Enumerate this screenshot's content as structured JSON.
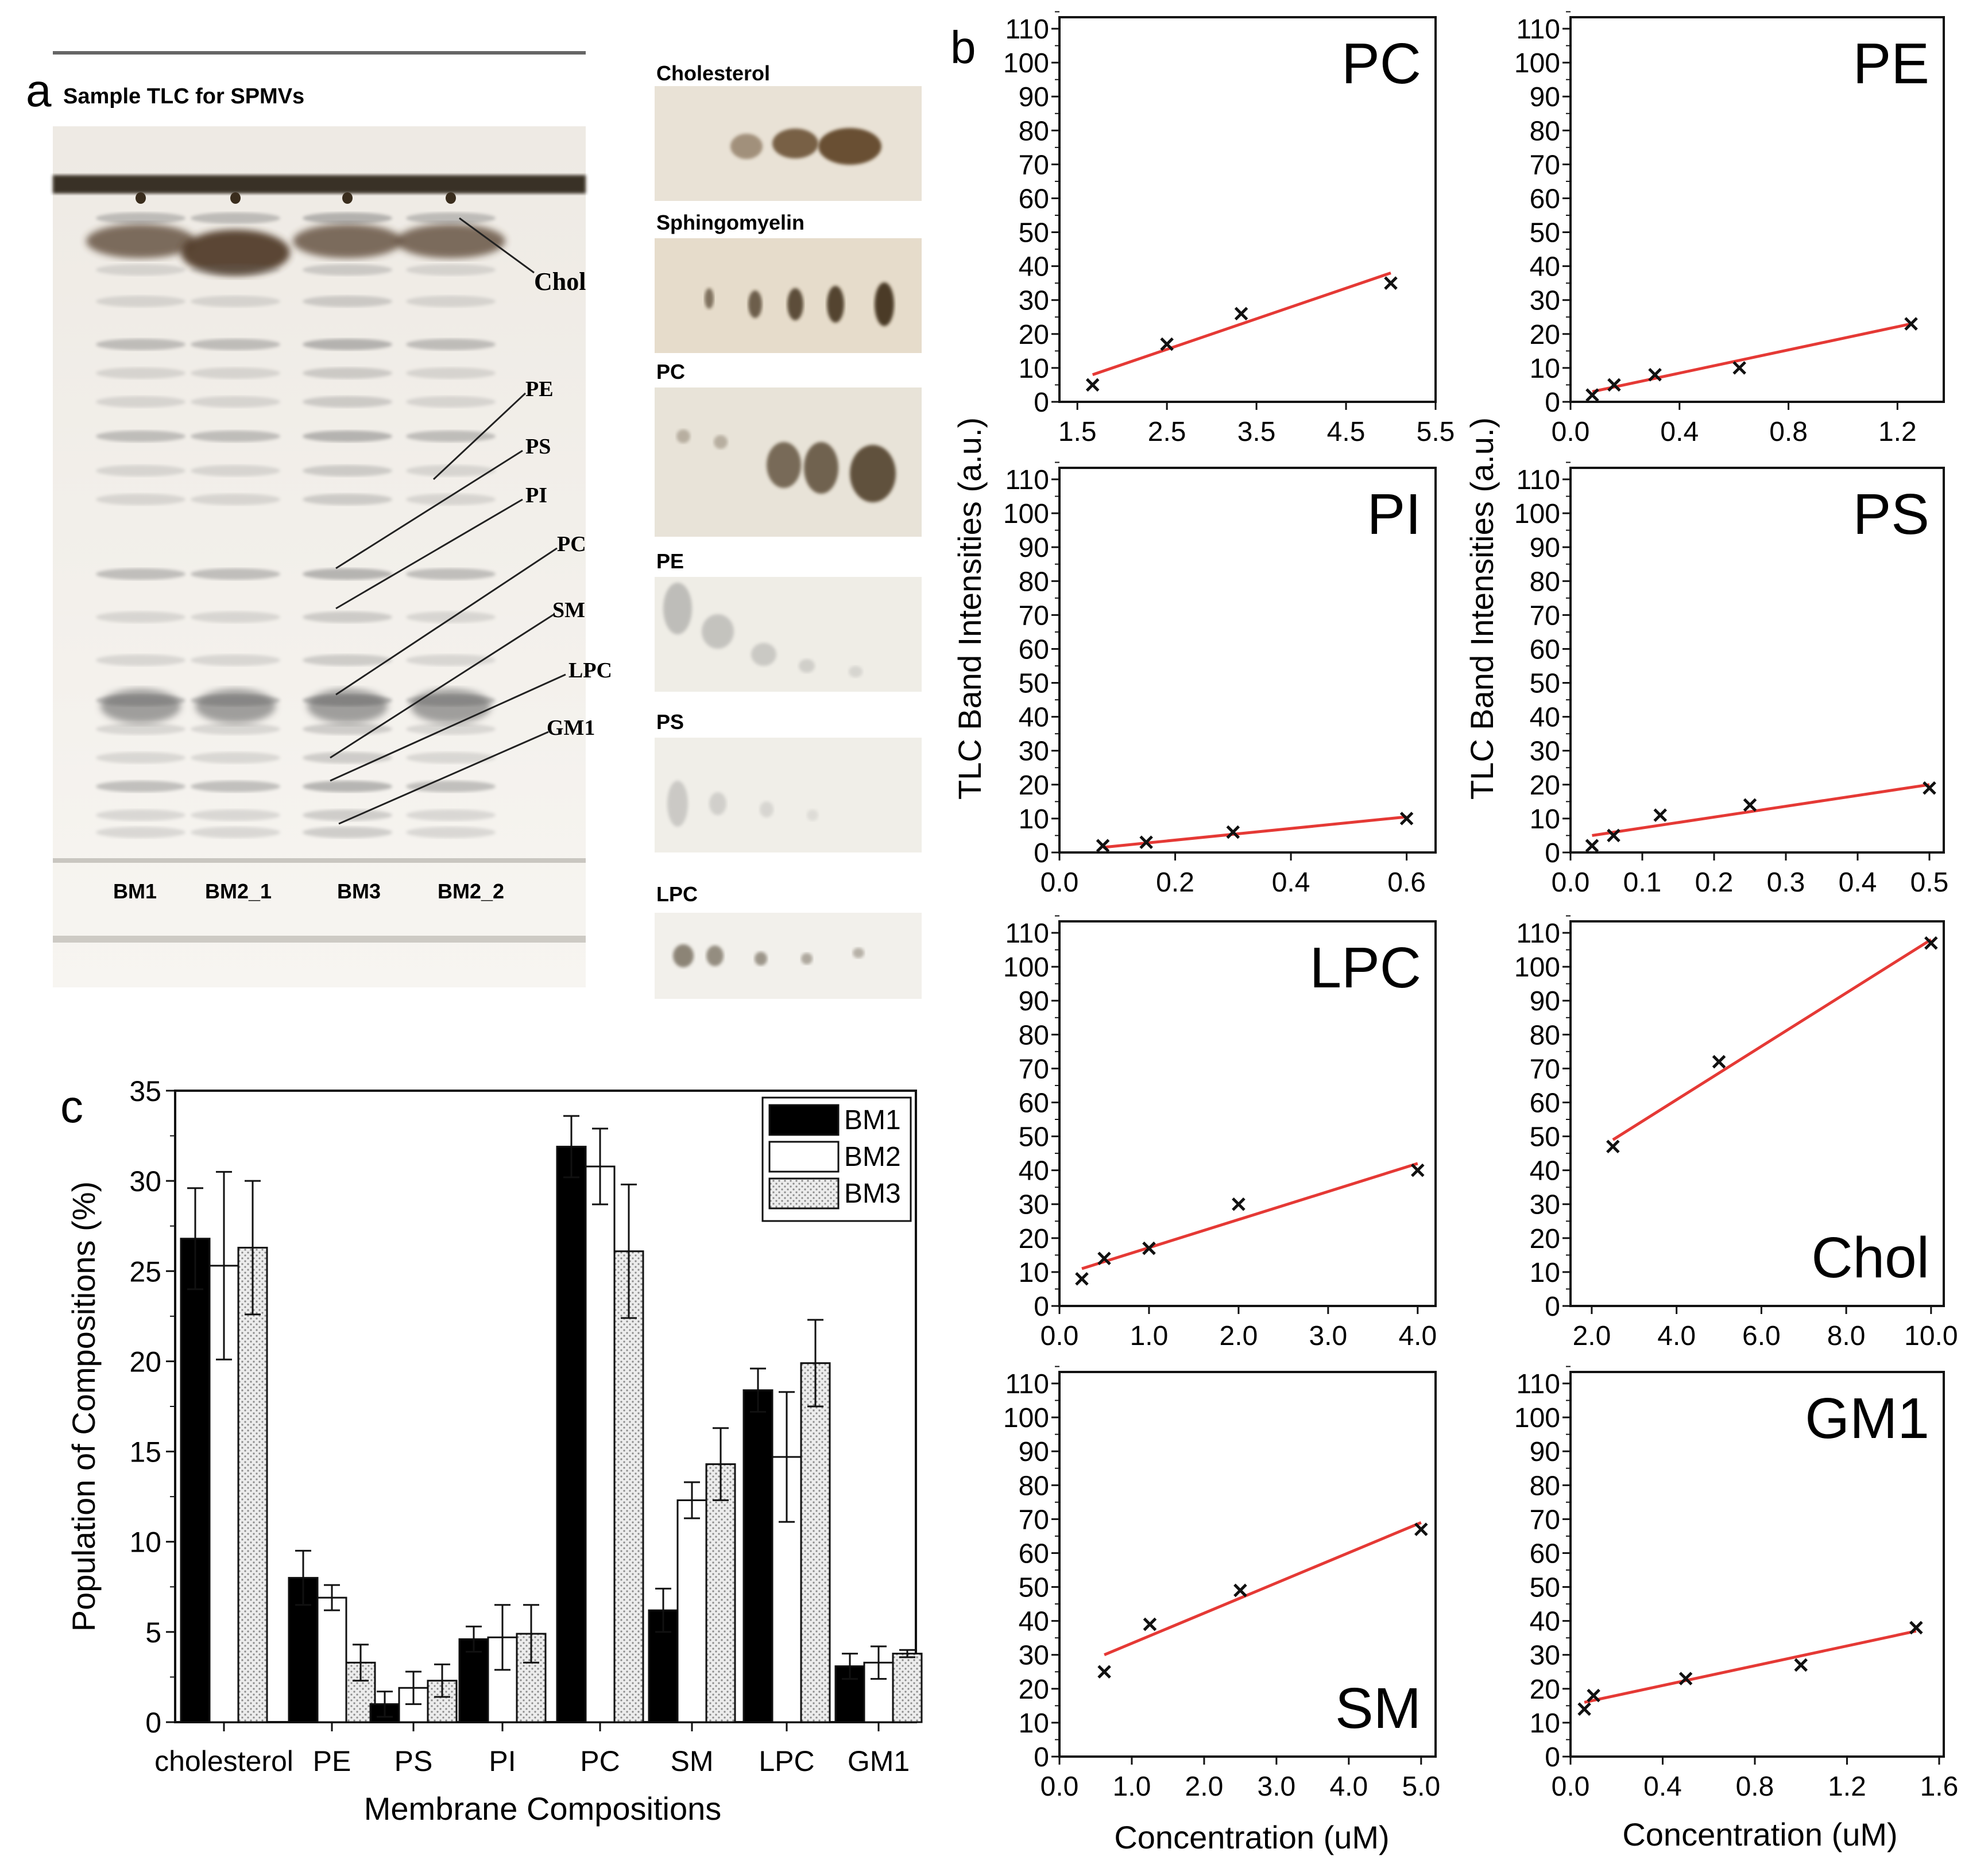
{
  "panel_a": {
    "letter": "a",
    "title": "Sample TLC for SPMVs",
    "band_labels": [
      "Chol",
      "PE",
      "PS",
      "PI",
      "PC",
      "SM",
      "LPC",
      "GM1"
    ],
    "lane_labels": [
      "BM1",
      "BM2_1",
      "BM3",
      "BM2_2"
    ],
    "standards": [
      "Cholesterol",
      "Sphingomyelin",
      "PC",
      "PE",
      "PS",
      "LPC"
    ]
  },
  "panel_b_letter": "b",
  "panel_c_letter": "c",
  "colors": {
    "fit_line": "#e53935",
    "marker": "#111111",
    "bm1": "#000000",
    "bm2": "#ffffff",
    "bm3": "#d9d9d9"
  },
  "chart_data": [
    {
      "type": "bar",
      "panel": "c",
      "categories": [
        "cholesterol",
        "PE",
        "PS",
        "PI",
        "PC",
        "SM",
        "LPC",
        "GM1"
      ],
      "series": [
        {
          "name": "BM1",
          "values": [
            26.8,
            8.0,
            1.0,
            4.6,
            31.9,
            6.2,
            18.4,
            3.1
          ],
          "errors": [
            2.8,
            1.5,
            0.7,
            0.7,
            1.7,
            1.2,
            1.2,
            0.7
          ]
        },
        {
          "name": "BM2",
          "values": [
            25.3,
            6.9,
            1.9,
            4.7,
            30.8,
            12.3,
            14.7,
            3.3
          ],
          "errors": [
            5.2,
            0.7,
            0.9,
            1.8,
            2.1,
            1.0,
            3.6,
            0.9
          ]
        },
        {
          "name": "BM3",
          "values": [
            26.3,
            3.3,
            2.3,
            4.9,
            26.1,
            14.3,
            19.9,
            3.8
          ],
          "errors": [
            3.7,
            1.0,
            0.9,
            1.6,
            3.7,
            2.0,
            2.4,
            0.2
          ]
        }
      ],
      "xlabel": "Membrane Compositions",
      "ylabel": "Population of Compositions (%)",
      "ylim": [
        0,
        35
      ],
      "yticks": [
        "0",
        "5",
        "10",
        "15",
        "20",
        "25",
        "30",
        "35"
      ]
    },
    {
      "type": "scatter",
      "panel": "b",
      "label": "PC",
      "label_pos": "top-right",
      "x": [
        1.67,
        2.5,
        3.33,
        5.0
      ],
      "y": [
        5,
        17,
        26,
        35
      ],
      "fit": [
        [
          1.67,
          8
        ],
        [
          5.0,
          38
        ]
      ],
      "xlim": [
        1.3,
        5.5
      ],
      "xticks": [
        "1.5",
        "2.5",
        "3.5",
        "4.5",
        "5.5"
      ],
      "ylim": [
        0,
        110
      ]
    },
    {
      "type": "scatter",
      "panel": "b",
      "label": "PE",
      "label_pos": "top-right",
      "x": [
        0.08,
        0.16,
        0.31,
        0.62,
        1.25
      ],
      "y": [
        2,
        5,
        8,
        10,
        23
      ],
      "fit": [
        [
          0.08,
          3
        ],
        [
          1.25,
          23
        ]
      ],
      "xlim": [
        0.0,
        1.37
      ],
      "xticks": [
        "0.0",
        "0.4",
        "0.8",
        "1.2"
      ],
      "ylim": [
        0,
        110
      ]
    },
    {
      "type": "scatter",
      "panel": "b",
      "label": "PI",
      "label_pos": "top-right",
      "x": [
        0.075,
        0.15,
        0.3,
        0.6
      ],
      "y": [
        2,
        3,
        6,
        10
      ],
      "fit": [
        [
          0.075,
          1.5
        ],
        [
          0.6,
          10.5
        ]
      ],
      "xlim": [
        0.0,
        0.65
      ],
      "xticks": [
        "0.0",
        "0.2",
        "0.4",
        "0.6"
      ],
      "ylim": [
        0,
        110
      ]
    },
    {
      "type": "scatter",
      "panel": "b",
      "label": "PS",
      "label_pos": "top-right",
      "x": [
        0.03,
        0.06,
        0.125,
        0.25,
        0.5
      ],
      "y": [
        2,
        5,
        11,
        14,
        19
      ],
      "fit": [
        [
          0.03,
          5
        ],
        [
          0.5,
          20
        ]
      ],
      "xlim": [
        0.0,
        0.52
      ],
      "xticks": [
        "0.0",
        "0.1",
        "0.2",
        "0.3",
        "0.4",
        "0.5"
      ],
      "ylim": [
        0,
        110
      ]
    },
    {
      "type": "scatter",
      "panel": "b",
      "label": "LPC",
      "label_pos": "top-right",
      "x": [
        0.25,
        0.5,
        1.0,
        2.0,
        4.0
      ],
      "y": [
        8,
        14,
        17,
        30,
        40
      ],
      "fit": [
        [
          0.25,
          11
        ],
        [
          4.0,
          42
        ]
      ],
      "xlim": [
        0.0,
        4.2
      ],
      "xticks": [
        "0.0",
        "1.0",
        "2.0",
        "3.0",
        "4.0"
      ],
      "ylim": [
        0,
        110
      ]
    },
    {
      "type": "scatter",
      "panel": "b",
      "label": "Chol",
      "label_pos": "bottom-right",
      "x": [
        2.5,
        5.0,
        10.0
      ],
      "y": [
        47,
        72,
        107
      ],
      "fit": [
        [
          2.5,
          49
        ],
        [
          10.0,
          108
        ]
      ],
      "xlim": [
        1.5,
        10.3
      ],
      "xticks": [
        "2.0",
        "4.0",
        "6.0",
        "8.0",
        "10.0"
      ],
      "ylim": [
        0,
        110
      ]
    },
    {
      "type": "scatter",
      "panel": "b",
      "label": "SM",
      "label_pos": "bottom-right",
      "x": [
        0.62,
        1.25,
        2.5,
        5.0
      ],
      "y": [
        25,
        39,
        49,
        67
      ],
      "fit": [
        [
          0.62,
          30
        ],
        [
          5.0,
          69
        ]
      ],
      "xlim": [
        0.0,
        5.2
      ],
      "xticks": [
        "0.0",
        "1.0",
        "2.0",
        "3.0",
        "4.0",
        "5.0"
      ],
      "ylim": [
        0,
        110
      ]
    },
    {
      "type": "scatter",
      "panel": "b",
      "label": "GM1",
      "label_pos": "top-right",
      "x": [
        0.06,
        0.1,
        0.5,
        1.0,
        1.5
      ],
      "y": [
        14,
        18,
        23,
        27,
        38
      ],
      "fit": [
        [
          0.06,
          16
        ],
        [
          1.5,
          37
        ]
      ],
      "xlim": [
        0.0,
        1.62
      ],
      "xticks": [
        "0.0",
        "0.4",
        "0.8",
        "1.2",
        "1.6"
      ],
      "ylim": [
        0,
        110
      ]
    }
  ],
  "panel_b_axes": {
    "yticks": [
      "0",
      "10",
      "20",
      "30",
      "40",
      "50",
      "60",
      "70",
      "80",
      "90",
      "100",
      "110"
    ],
    "ylabel": "TLC Band Intensities (a.u.)",
    "xlabel": "Concentration (uM)"
  }
}
